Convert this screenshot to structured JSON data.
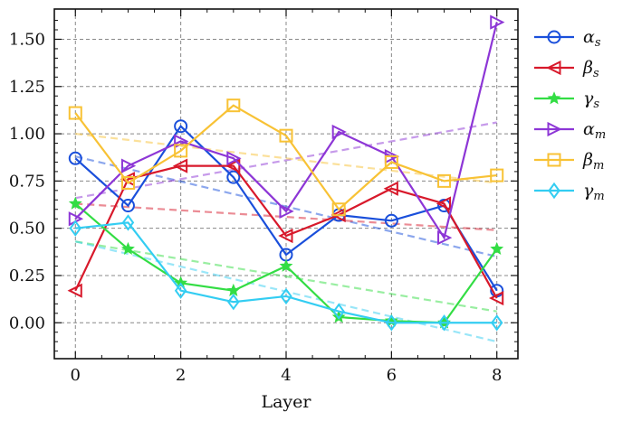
{
  "chart_data": {
    "type": "line",
    "xlabel": "Layer",
    "ylabel": "",
    "xlim": [
      -0.4,
      8.4
    ],
    "ylim": [
      -0.19,
      1.66
    ],
    "xticks": [
      0,
      2,
      4,
      6,
      8
    ],
    "xtick_labels": [
      "0",
      "2",
      "4",
      "6",
      "8"
    ],
    "yticks": [
      0.0,
      0.25,
      0.5,
      0.75,
      1.0,
      1.25,
      1.5
    ],
    "ytick_labels": [
      "0.00",
      "0.25",
      "0.50",
      "0.75",
      "1.00",
      "1.25",
      "1.50"
    ],
    "grid": true,
    "legend_position": "outside-right",
    "x": [
      0,
      1,
      2,
      3,
      4,
      5,
      6,
      7,
      8
    ],
    "series": [
      {
        "name": "α",
        "sub": "s",
        "color": "#1a4fdb",
        "marker": "circle",
        "values": [
          0.87,
          0.62,
          1.04,
          0.77,
          0.36,
          0.57,
          0.54,
          0.62,
          0.17
        ],
        "trend": [
          0.88,
          0.35
        ]
      },
      {
        "name": "β",
        "sub": "s",
        "color": "#d8192b",
        "marker": "triangle-left",
        "values": [
          0.17,
          0.76,
          0.83,
          0.83,
          0.46,
          0.57,
          0.71,
          0.63,
          0.13
        ],
        "trend": [
          0.63,
          0.49
        ]
      },
      {
        "name": "γ",
        "sub": "s",
        "color": "#33dd44",
        "marker": "star",
        "values": [
          0.63,
          0.39,
          0.21,
          0.17,
          0.3,
          0.03,
          0.01,
          0.0,
          0.39
        ],
        "trend": [
          0.43,
          0.06
        ]
      },
      {
        "name": "α",
        "sub": "m",
        "color": "#8d36d6",
        "marker": "triangle-right",
        "values": [
          0.55,
          0.83,
          0.96,
          0.87,
          0.59,
          1.01,
          0.88,
          0.45,
          1.59
        ],
        "trend": [
          0.66,
          1.06
        ]
      },
      {
        "name": "β",
        "sub": "m",
        "color": "#f8c235",
        "marker": "square",
        "values": [
          1.11,
          0.74,
          0.91,
          1.15,
          0.99,
          0.6,
          0.85,
          0.75,
          0.78
        ],
        "trend": [
          1.0,
          0.74
        ]
      },
      {
        "name": "γ",
        "sub": "m",
        "color": "#33cdf2",
        "marker": "diamond",
        "values": [
          0.5,
          0.53,
          0.17,
          0.11,
          0.14,
          0.06,
          0.0,
          0.0,
          0.0
        ],
        "trend": [
          0.43,
          -0.1
        ]
      }
    ]
  }
}
